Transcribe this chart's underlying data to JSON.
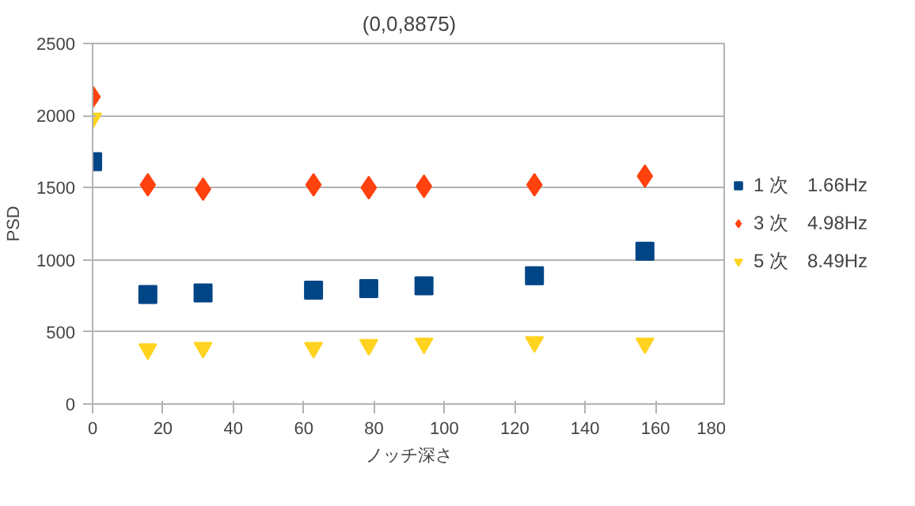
{
  "chart_data": {
    "type": "scatter",
    "title": "(0,0,8875)",
    "xlabel": "ノッチ深さ",
    "ylabel": "PSD",
    "x": [
      0,
      15.7,
      31.4,
      62.8,
      78.5,
      94.2,
      125.6,
      157
    ],
    "series": [
      {
        "name": "1 次　1.66Hz",
        "color": "#004586",
        "marker": "square",
        "values": [
          1680,
          760,
          770,
          790,
          800,
          820,
          890,
          1060
        ]
      },
      {
        "name": "3 次　4.98Hz",
        "color": "#ff420e",
        "marker": "diamond",
        "values": [
          2130,
          1520,
          1490,
          1520,
          1500,
          1510,
          1520,
          1580
        ]
      },
      {
        "name": "5 次　8.49Hz",
        "color": "#ffd320",
        "marker": "triangle",
        "values": [
          1980,
          380,
          390,
          390,
          410,
          420,
          430,
          420
        ]
      }
    ],
    "xlim": [
      0,
      180
    ],
    "xticks": [
      0,
      20,
      40,
      60,
      80,
      100,
      120,
      140,
      160,
      180
    ],
    "ylim": [
      0,
      2500
    ],
    "yticks": [
      0,
      500,
      1000,
      1500,
      2000,
      2500
    ],
    "grid": "y",
    "legend": "right"
  }
}
